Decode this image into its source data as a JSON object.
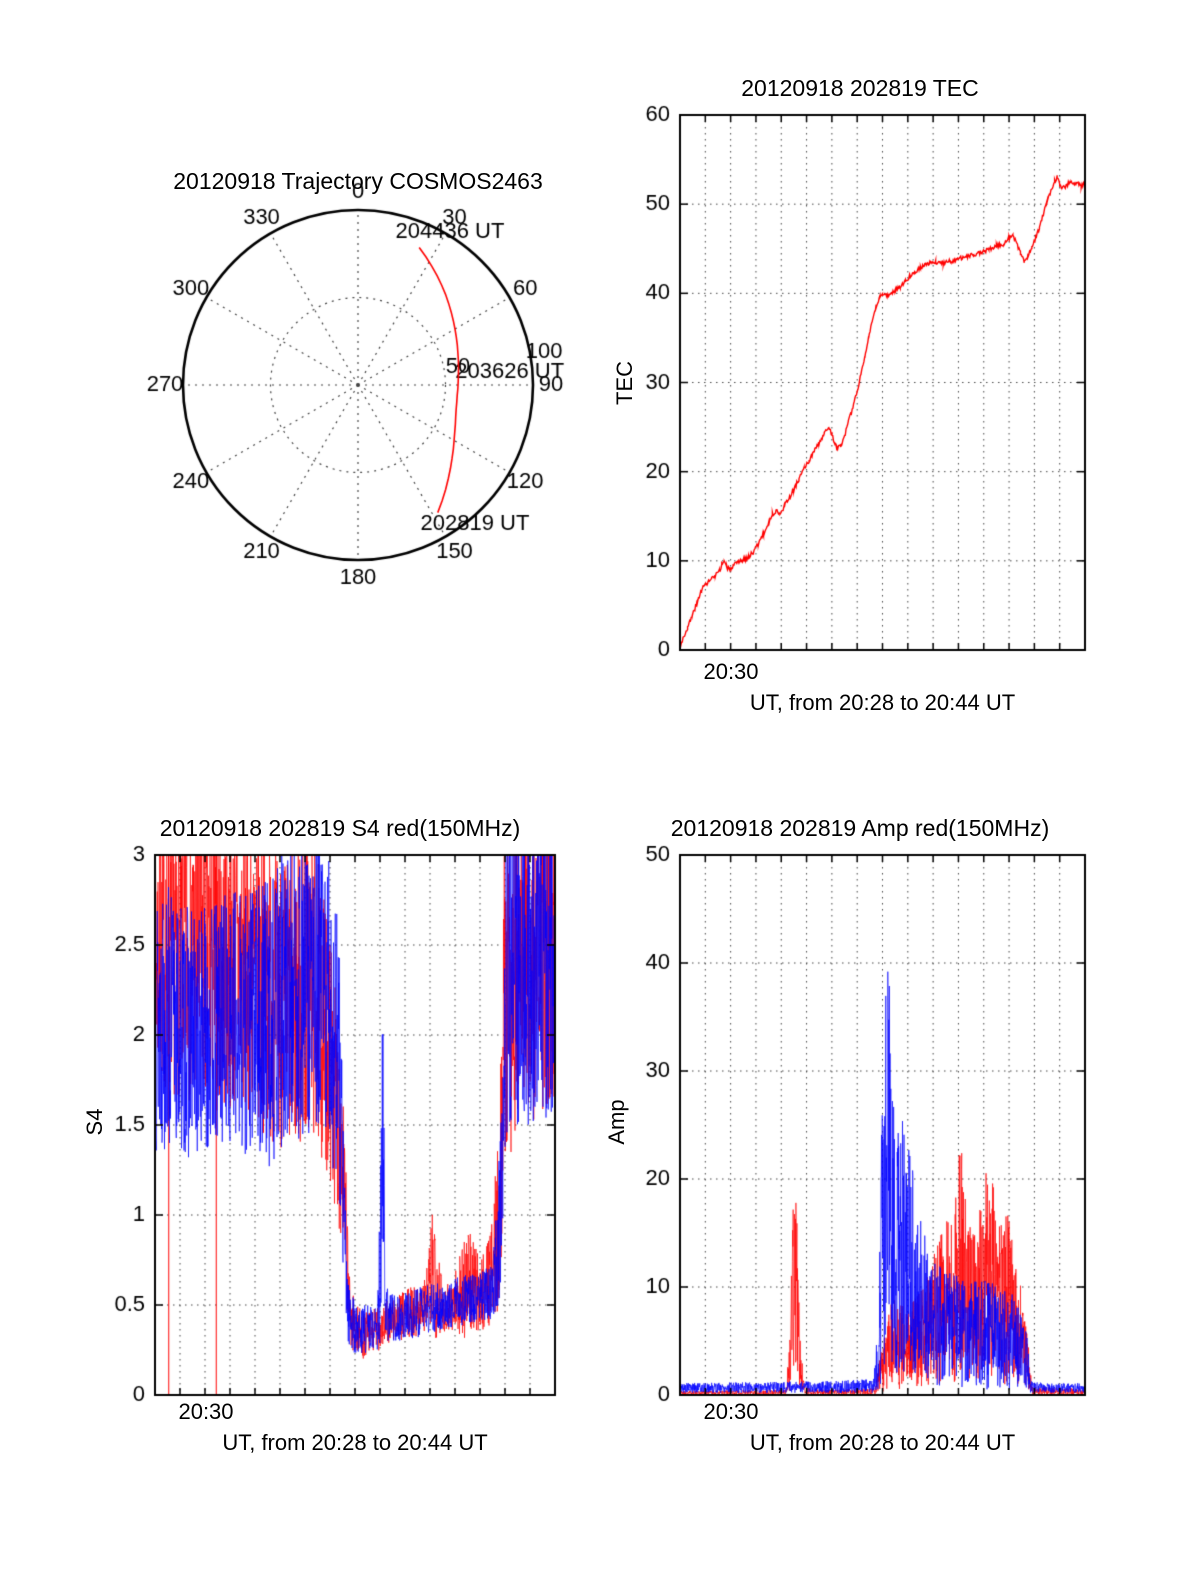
{
  "page": {
    "background": "#ffffff",
    "axis_color": "#000000"
  },
  "colors": {
    "red": "#ff0000",
    "blue": "#0000ff",
    "grid": "#444444"
  },
  "chart_data": [
    {
      "id": "polar",
      "type": "polar-trajectory",
      "title": "20120918 Trajectory COSMOS2463",
      "azimuth_ticks": [
        0,
        30,
        60,
        90,
        120,
        150,
        180,
        210,
        240,
        270,
        300,
        330
      ],
      "radial_ticks": [
        {
          "label": "50",
          "r": 50
        },
        {
          "label": "100",
          "r": 100
        }
      ],
      "r_max": 100,
      "grid": "dotted",
      "trajectory_color": "#ff0000",
      "trajectory": [
        [
          24,
          86
        ],
        [
          28,
          82.8
        ],
        [
          32,
          79.8
        ],
        [
          36,
          77
        ],
        [
          40,
          74.4
        ],
        [
          44,
          72
        ],
        [
          48,
          69.7
        ],
        [
          52,
          67.6
        ],
        [
          56,
          65.7
        ],
        [
          60,
          64
        ],
        [
          64,
          62.5
        ],
        [
          68,
          61.2
        ],
        [
          72,
          60
        ],
        [
          76,
          59.1
        ],
        [
          80,
          58.3
        ],
        [
          84,
          57.7
        ],
        [
          88,
          57.3
        ],
        [
          92,
          57.1
        ],
        [
          96,
          57
        ],
        [
          100,
          57.3
        ],
        [
          104,
          57.8
        ],
        [
          108,
          58.7
        ],
        [
          112,
          60
        ],
        [
          116,
          61.5
        ],
        [
          120,
          63.4
        ],
        [
          124,
          65.7
        ],
        [
          128,
          68.2
        ],
        [
          132,
          71.1
        ],
        [
          136,
          74.3
        ],
        [
          140,
          77.9
        ],
        [
          144,
          81.8
        ],
        [
          148,
          86
        ]
      ],
      "annotations": [
        {
          "label": "204436 UT",
          "azimuth": 31,
          "r": 102
        },
        {
          "label": "203626 UT",
          "azimuth": 85,
          "r": 87
        },
        {
          "label": "202819 UT",
          "azimuth": 140,
          "r": 104
        }
      ]
    },
    {
      "id": "tec",
      "type": "line",
      "title": "20120918 202819 TEC",
      "xlabel": "UT, from 20:28 to 20:44 UT",
      "ylabel": "TEC",
      "x_minutes_range": [
        0,
        16
      ],
      "ylim": [
        0,
        60
      ],
      "yticks": [
        0,
        10,
        20,
        30,
        40,
        50,
        60
      ],
      "x_grid_every_min": 1,
      "xtick_labels": [
        {
          "label": "20:30",
          "t": 2
        }
      ],
      "grid": "dotted",
      "series": [
        {
          "name": "TEC",
          "color": "#ff0000",
          "noise": 0.25,
          "seed": 3,
          "points": [
            [
              0,
              0.5
            ],
            [
              0.15,
              1.5
            ],
            [
              0.3,
              2.5
            ],
            [
              0.5,
              4
            ],
            [
              0.7,
              5.5
            ],
            [
              0.85,
              6.8
            ],
            [
              1.0,
              7.3
            ],
            [
              1.1,
              7.6
            ],
            [
              1.25,
              8.0
            ],
            [
              1.4,
              8.3
            ],
            [
              1.55,
              8.8
            ],
            [
              1.65,
              9.6
            ],
            [
              1.75,
              10.0
            ],
            [
              1.85,
              9.3
            ],
            [
              1.95,
              9.0
            ],
            [
              2.1,
              9.4
            ],
            [
              2.3,
              9.8
            ],
            [
              2.5,
              10.1
            ],
            [
              2.7,
              10.4
            ],
            [
              2.9,
              11.0
            ],
            [
              3.1,
              12.0
            ],
            [
              3.3,
              13.0
            ],
            [
              3.5,
              14.2
            ],
            [
              3.65,
              15.2
            ],
            [
              3.8,
              15.6
            ],
            [
              3.95,
              15.4
            ],
            [
              4.1,
              16.0
            ],
            [
              4.3,
              17.0
            ],
            [
              4.5,
              18.0
            ],
            [
              4.7,
              19.2
            ],
            [
              4.9,
              20.3
            ],
            [
              5.1,
              21.2
            ],
            [
              5.3,
              22.3
            ],
            [
              5.5,
              23.2
            ],
            [
              5.7,
              24.2
            ],
            [
              5.85,
              25.0
            ],
            [
              6.0,
              24.2
            ],
            [
              6.1,
              23.2
            ],
            [
              6.2,
              22.6
            ],
            [
              6.35,
              22.9
            ],
            [
              6.5,
              24.0
            ],
            [
              6.65,
              25.5
            ],
            [
              6.8,
              27.0
            ],
            [
              7.0,
              29.0
            ],
            [
              7.15,
              31.0
            ],
            [
              7.3,
              33.0
            ],
            [
              7.45,
              35.0
            ],
            [
              7.6,
              36.8
            ],
            [
              7.75,
              38.5
            ],
            [
              7.9,
              39.6
            ],
            [
              8.0,
              40.0
            ],
            [
              8.15,
              39.7
            ],
            [
              8.3,
              39.9
            ],
            [
              8.5,
              40.3
            ],
            [
              8.7,
              40.8
            ],
            [
              8.9,
              41.4
            ],
            [
              9.1,
              42.0
            ],
            [
              9.3,
              42.5
            ],
            [
              9.5,
              42.9
            ],
            [
              9.7,
              43.2
            ],
            [
              9.9,
              43.4
            ],
            [
              10.1,
              43.5
            ],
            [
              10.4,
              43.4
            ],
            [
              10.7,
              43.6
            ],
            [
              11.0,
              43.9
            ],
            [
              11.3,
              44.1
            ],
            [
              11.6,
              44.3
            ],
            [
              11.9,
              44.6
            ],
            [
              12.2,
              44.9
            ],
            [
              12.5,
              45.3
            ],
            [
              12.8,
              45.6
            ],
            [
              13.0,
              46.2
            ],
            [
              13.15,
              46.4
            ],
            [
              13.3,
              45.6
            ],
            [
              13.45,
              44.6
            ],
            [
              13.6,
              43.6
            ],
            [
              13.75,
              44.2
            ],
            [
              13.9,
              45.2
            ],
            [
              14.05,
              46.2
            ],
            [
              14.2,
              47.3
            ],
            [
              14.35,
              48.8
            ],
            [
              14.5,
              50.3
            ],
            [
              14.65,
              51.5
            ],
            [
              14.8,
              52.6
            ],
            [
              14.9,
              53.0
            ],
            [
              15.0,
              52.2
            ],
            [
              15.1,
              51.8
            ],
            [
              15.25,
              52.0
            ],
            [
              15.4,
              52.6
            ],
            [
              15.55,
              52.2
            ],
            [
              15.7,
              52.4
            ],
            [
              15.85,
              52.1
            ],
            [
              16,
              52.3
            ]
          ]
        }
      ]
    },
    {
      "id": "s4",
      "type": "noisy",
      "title": "20120918 202819 S4 red(150MHz)",
      "xlabel": "UT, from 20:28 to 20:44 UT",
      "ylabel": "S4",
      "x_minutes_range": [
        0,
        16
      ],
      "ylim": [
        0,
        3
      ],
      "yticks": [
        0,
        0.5,
        1,
        1.5,
        2,
        2.5,
        3
      ],
      "x_grid_every_min": 1,
      "xtick_labels": [
        {
          "label": "20:30",
          "t": 2
        }
      ],
      "grid": "dotted",
      "series": [
        {
          "name": "S4 150MHz red",
          "color": "#ff0000",
          "seed": 7,
          "envelope": [
            [
              0,
              1.7,
              3.2
            ],
            [
              2,
              1.6,
              3.3
            ],
            [
              4,
              1.5,
              3.2
            ],
            [
              5.4,
              1.3,
              3.0
            ],
            [
              6.2,
              1.4,
              3.2
            ],
            [
              7.0,
              1.2,
              2.6
            ],
            [
              7.5,
              0.8,
              1.8
            ],
            [
              7.8,
              0.25,
              0.6
            ],
            [
              8.3,
              0.2,
              0.45
            ],
            [
              9.0,
              0.25,
              0.5
            ],
            [
              9.6,
              0.3,
              0.55
            ],
            [
              10.2,
              0.3,
              0.6
            ],
            [
              10.8,
              0.35,
              0.65
            ],
            [
              11.2,
              0.3,
              1.15
            ],
            [
              11.5,
              0.35,
              0.6
            ],
            [
              12.0,
              0.35,
              0.7
            ],
            [
              12.5,
              0.3,
              0.95
            ],
            [
              13.0,
              0.35,
              0.75
            ],
            [
              13.5,
              0.4,
              1.0
            ],
            [
              13.8,
              0.5,
              1.6
            ],
            [
              14.0,
              1.3,
              3.3
            ],
            [
              15,
              1.5,
              3.4
            ],
            [
              16,
              1.6,
              3.3
            ]
          ],
          "drop_lines": [
            0.55,
            2.45
          ]
        },
        {
          "name": "S4 150MHz blue",
          "color": "#0000ff",
          "seed": 13,
          "envelope": [
            [
              0,
              1.35,
              2.9
            ],
            [
              1.5,
              1.3,
              2.7
            ],
            [
              3,
              1.4,
              2.8
            ],
            [
              4.5,
              1.25,
              2.9
            ],
            [
              5.5,
              1.4,
              3.1
            ],
            [
              6.5,
              1.4,
              3.2
            ],
            [
              7.3,
              1.2,
              2.8
            ],
            [
              7.7,
              0.3,
              0.7
            ],
            [
              8.0,
              0.22,
              0.5
            ],
            [
              8.9,
              0.25,
              0.5
            ],
            [
              9.05,
              0.3,
              1.5
            ],
            [
              9.12,
              0.4,
              2.62
            ],
            [
              9.2,
              0.3,
              0.6
            ],
            [
              9.8,
              0.3,
              0.55
            ],
            [
              10.5,
              0.32,
              0.6
            ],
            [
              11.2,
              0.35,
              0.62
            ],
            [
              12.0,
              0.38,
              0.65
            ],
            [
              12.8,
              0.4,
              0.68
            ],
            [
              13.5,
              0.42,
              0.72
            ],
            [
              13.8,
              0.5,
              1.4
            ],
            [
              14.05,
              1.4,
              3.3
            ],
            [
              15,
              1.5,
              3.4
            ],
            [
              16,
              1.55,
              3.2
            ]
          ]
        }
      ]
    },
    {
      "id": "amp",
      "type": "noisy",
      "title": "20120918 202819 Amp red(150MHz)",
      "xlabel": "UT, from 20:28 to 20:44 UT",
      "ylabel": "Amp",
      "x_minutes_range": [
        0,
        16
      ],
      "ylim": [
        0,
        50
      ],
      "yticks": [
        0,
        10,
        20,
        30,
        40,
        50
      ],
      "x_grid_every_min": 1,
      "xtick_labels": [
        {
          "label": "20:30",
          "t": 2
        }
      ],
      "grid": "dotted",
      "series": [
        {
          "name": "Amp 150MHz red",
          "color": "#ff0000",
          "seed": 21,
          "envelope": [
            [
              0,
              0,
              0.4
            ],
            [
              4.2,
              0,
              0.5
            ],
            [
              4.4,
              0.3,
              12
            ],
            [
              4.5,
              1,
              23.5
            ],
            [
              4.62,
              0.5,
              17
            ],
            [
              4.75,
              0.2,
              6
            ],
            [
              4.9,
              0,
              1
            ],
            [
              5.2,
              0,
              0.5
            ],
            [
              7.7,
              0,
              0.6
            ],
            [
              8.0,
              0.3,
              5
            ],
            [
              8.4,
              0.5,
              9
            ],
            [
              9.0,
              0.5,
              8
            ],
            [
              9.6,
              0.5,
              10
            ],
            [
              10.0,
              0.8,
              13
            ],
            [
              10.5,
              1,
              16
            ],
            [
              10.9,
              1,
              19
            ],
            [
              11.1,
              1.5,
              28.5
            ],
            [
              11.3,
              1,
              17
            ],
            [
              11.7,
              1,
              15
            ],
            [
              12.0,
              1,
              20
            ],
            [
              12.3,
              1.5,
              23
            ],
            [
              12.6,
              1,
              16
            ],
            [
              12.9,
              1,
              18
            ],
            [
              13.2,
              1,
              13
            ],
            [
              13.5,
              0.8,
              10
            ],
            [
              13.75,
              0.3,
              5
            ],
            [
              13.9,
              0,
              0.8
            ],
            [
              16,
              0,
              0.6
            ]
          ]
        },
        {
          "name": "Amp 150MHz blue",
          "color": "#0000ff",
          "seed": 5,
          "envelope": [
            [
              0,
              0.2,
              1.1
            ],
            [
              3,
              0.2,
              1.2
            ],
            [
              6,
              0.2,
              1.3
            ],
            [
              7.6,
              0.2,
              1.5
            ],
            [
              7.85,
              0.3,
              8
            ],
            [
              8.0,
              1,
              30
            ],
            [
              8.15,
              3,
              41.5
            ],
            [
              8.3,
              3,
              38
            ],
            [
              8.5,
              2,
              30
            ],
            [
              8.8,
              2,
              26
            ],
            [
              9.1,
              1.5,
              22
            ],
            [
              9.5,
              1,
              17
            ],
            [
              9.9,
              0.8,
              13
            ],
            [
              10.4,
              0.5,
              12
            ],
            [
              11.0,
              0.5,
              11.5
            ],
            [
              11.6,
              0.5,
              11
            ],
            [
              12.2,
              0.5,
              10.5
            ],
            [
              12.8,
              0.5,
              10
            ],
            [
              13.3,
              0.4,
              9
            ],
            [
              13.7,
              0.3,
              6
            ],
            [
              13.85,
              0.2,
              1.3
            ],
            [
              14.5,
              0.2,
              1.1
            ],
            [
              16,
              0.2,
              1.1
            ]
          ]
        }
      ]
    }
  ]
}
